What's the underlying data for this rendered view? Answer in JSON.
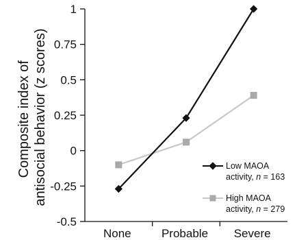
{
  "chart_data": {
    "type": "line",
    "categories": [
      "None",
      "Probable",
      "Severe"
    ],
    "ylabel_lines": [
      "Composite index of",
      "antisocial behavior (z scores)"
    ],
    "ylim": [
      -0.5,
      1
    ],
    "yticks": [
      "1",
      "0.75",
      "0.5",
      "0.25",
      "0",
      "-0.25",
      "-0.5"
    ],
    "ytick_values": [
      1,
      0.75,
      0.5,
      0.25,
      0,
      -0.25,
      -0.5
    ],
    "grid": false,
    "legend_position": "bottom-right",
    "series": [
      {
        "name": "Low MAOA activity, n = 163",
        "legend_line1": "Low MAOA",
        "legend_line2_prefix": "activity, ",
        "legend_n_symbol": "n",
        "legend_n_value": " = 163",
        "marker": "diamond",
        "color": "#111111",
        "values": [
          -0.27,
          0.23,
          1.0
        ]
      },
      {
        "name": "High MAOA activity, n = 279",
        "legend_line1": "High MAOA",
        "legend_line2_prefix": "activity, ",
        "legend_n_symbol": "n",
        "legend_n_value": " = 279",
        "marker": "square",
        "color": "#c8c8c8",
        "marker_color": "#a9a9a9",
        "values": [
          -0.1,
          0.06,
          0.39
        ]
      }
    ]
  }
}
